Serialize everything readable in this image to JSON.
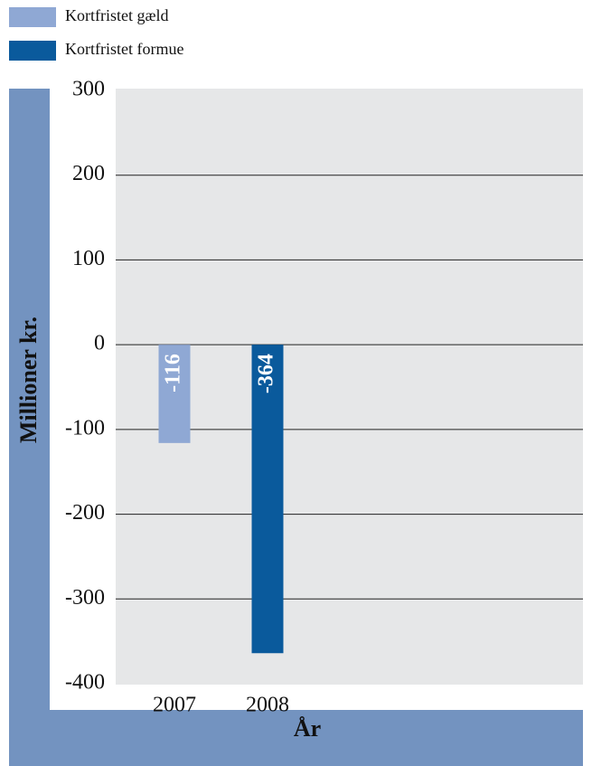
{
  "chart_data": {
    "type": "bar",
    "y_label": "Millioner kr.",
    "x_label": "År",
    "categories": [
      "2007",
      "2008"
    ],
    "series": [
      {
        "name": "Kortfristet gæld",
        "color": "#8fa8d4",
        "values": [
          -116,
          null
        ]
      },
      {
        "name": "Kortfristet formue",
        "color": "#0a5a9c",
        "values": [
          null,
          -364
        ]
      }
    ],
    "ylim": [
      -400,
      300
    ],
    "yticks": [
      -400,
      -300,
      -200,
      -100,
      0,
      100,
      200,
      300
    ],
    "grid": true,
    "legend": "upper left",
    "data_labels": true
  }
}
